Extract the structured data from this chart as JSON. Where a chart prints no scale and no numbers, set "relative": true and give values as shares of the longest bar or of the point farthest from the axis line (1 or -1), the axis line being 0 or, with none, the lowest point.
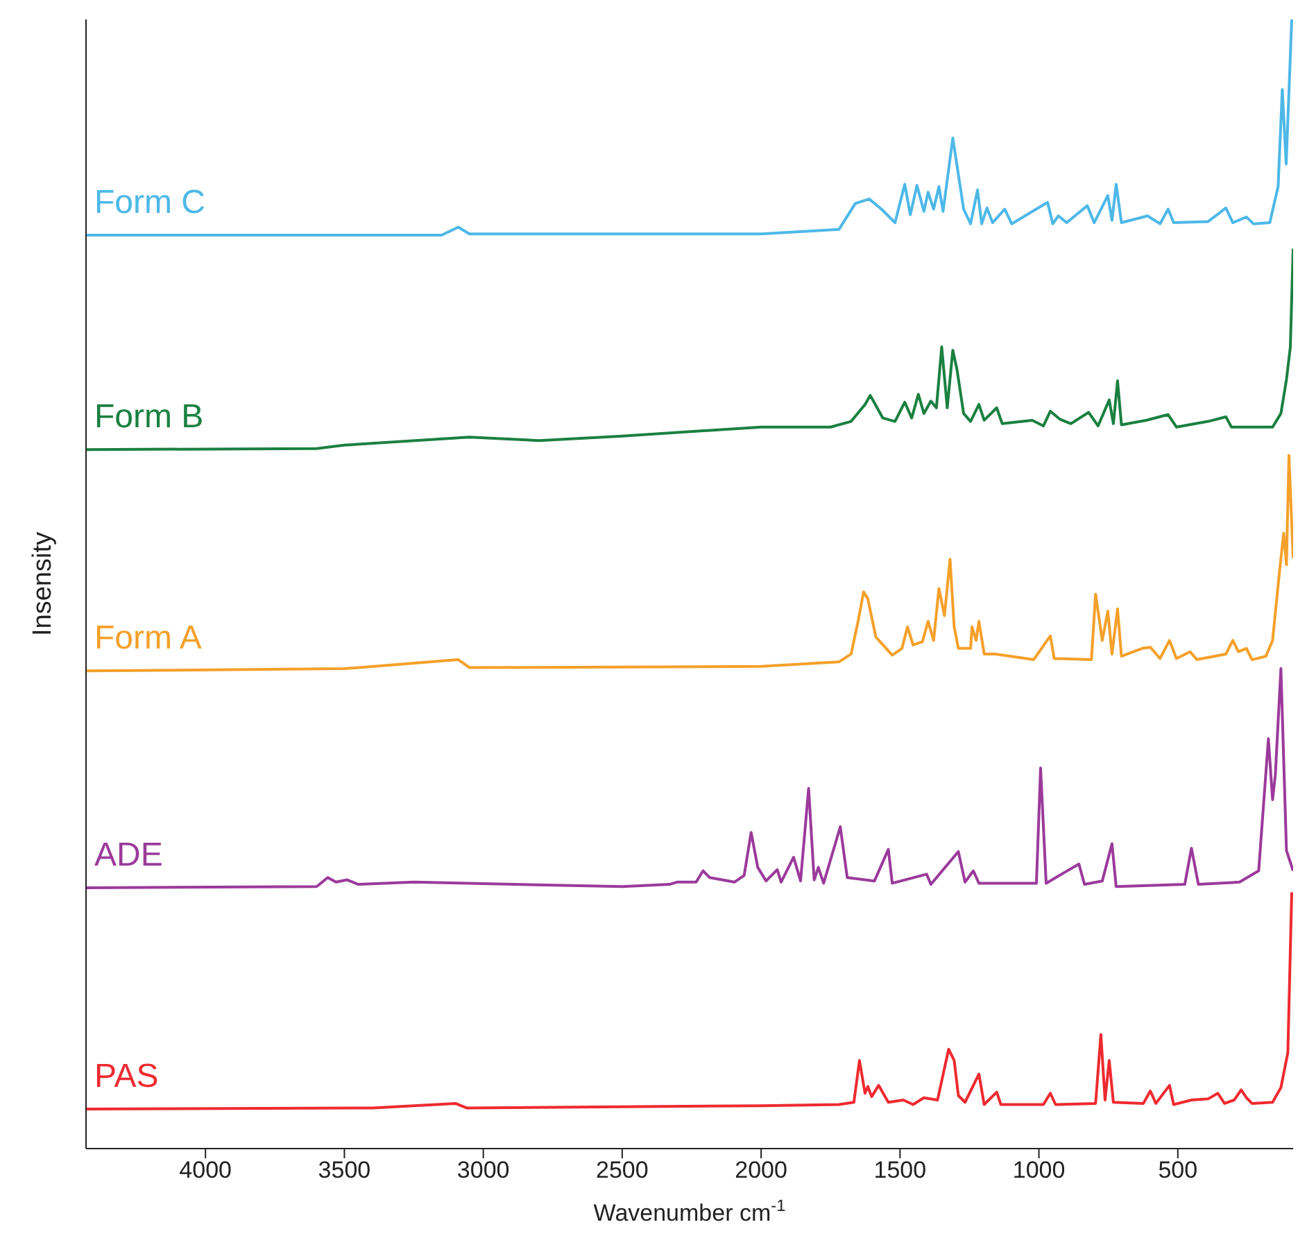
{
  "chart_data": {
    "type": "line",
    "relative": true,
    "xlabel": "Wavenumber cm$^{-1}$",
    "ylabel": "Insensity",
    "xlim": [
      4430,
      85
    ],
    "xticks": [
      4000,
      3500,
      3000,
      2500,
      2000,
      1500,
      1000,
      500
    ],
    "grid": false,
    "legend": false,
    "marker": "none",
    "line_style": "solid",
    "series": [
      {
        "name": "Form C",
        "color": "#4db8e8",
        "x": [
          4430,
          3500,
          3150,
          3090,
          3050,
          2000,
          1720,
          1661,
          1611,
          1567,
          1518,
          1483,
          1463,
          1439,
          1414,
          1399,
          1379,
          1360,
          1345,
          1310,
          1271,
          1246,
          1221,
          1206,
          1187,
          1167,
          1123,
          1098,
          969,
          950,
          930,
          900,
          826,
          801,
          752,
          737,
          722,
          703,
          609,
          564,
          535,
          515,
          391,
          327,
          302,
          253,
          228,
          169,
          139,
          124,
          110,
          90
        ],
        "values": [
          0.809,
          0.809,
          0.809,
          0.816,
          0.81,
          0.81,
          0.814,
          0.837,
          0.841,
          0.832,
          0.82,
          0.854,
          0.827,
          0.853,
          0.83,
          0.847,
          0.832,
          0.852,
          0.83,
          0.895,
          0.832,
          0.819,
          0.849,
          0.819,
          0.833,
          0.82,
          0.832,
          0.819,
          0.838,
          0.819,
          0.826,
          0.82,
          0.835,
          0.82,
          0.844,
          0.822,
          0.854,
          0.82,
          0.826,
          0.819,
          0.832,
          0.82,
          0.821,
          0.833,
          0.82,
          0.825,
          0.819,
          0.82,
          0.852,
          0.938,
          0.872,
          1
        ]
      },
      {
        "name": "Form B",
        "color": "#1a8040",
        "x": [
          4430,
          3600,
          3500,
          3050,
          2800,
          2500,
          2000,
          1750,
          1676,
          1626,
          1607,
          1562,
          1518,
          1483,
          1458,
          1434,
          1414,
          1389,
          1369,
          1350,
          1330,
          1310,
          1295,
          1271,
          1246,
          1216,
          1197,
          1152,
          1132,
          1024,
          984,
          959,
          925,
          885,
          821,
          787,
          747,
          732,
          717,
          703,
          614,
          535,
          505,
          391,
          327,
          307,
          159,
          129,
          109,
          95,
          85
        ],
        "values": [
          0.619,
          0.62,
          0.623,
          0.63,
          0.627,
          0.631,
          0.639,
          0.639,
          0.644,
          0.659,
          0.667,
          0.647,
          0.644,
          0.661,
          0.647,
          0.668,
          0.651,
          0.662,
          0.656,
          0.71,
          0.656,
          0.707,
          0.69,
          0.651,
          0.644,
          0.659,
          0.645,
          0.656,
          0.642,
          0.645,
          0.64,
          0.653,
          0.646,
          0.642,
          0.652,
          0.64,
          0.663,
          0.642,
          0.68,
          0.641,
          0.645,
          0.65,
          0.639,
          0.644,
          0.648,
          0.639,
          0.639,
          0.651,
          0.681,
          0.71,
          0.797
        ]
      },
      {
        "name": "Form A",
        "color": "#f5a02a",
        "x": [
          4430,
          3500,
          3090,
          3050,
          2000,
          1720,
          1676,
          1651,
          1631,
          1616,
          1587,
          1528,
          1493,
          1473,
          1453,
          1419,
          1399,
          1379,
          1360,
          1340,
          1320,
          1305,
          1290,
          1246,
          1241,
          1226,
          1216,
          1197,
          1157,
          1019,
          959,
          945,
          811,
          796,
          772,
          752,
          737,
          717,
          703,
          628,
          599,
          564,
          530,
          505,
          456,
          431,
          327,
          302,
          282,
          253,
          233,
          183,
          159,
          134,
          119,
          109,
          100,
          85
        ],
        "values": [
          0.423,
          0.425,
          0.433,
          0.426,
          0.427,
          0.431,
          0.438,
          0.467,
          0.493,
          0.487,
          0.453,
          0.437,
          0.443,
          0.462,
          0.446,
          0.449,
          0.467,
          0.45,
          0.496,
          0.472,
          0.522,
          0.462,
          0.443,
          0.443,
          0.462,
          0.45,
          0.467,
          0.438,
          0.438,
          0.433,
          0.454,
          0.434,
          0.433,
          0.491,
          0.45,
          0.476,
          0.438,
          0.478,
          0.436,
          0.443,
          0.444,
          0.434,
          0.45,
          0.434,
          0.44,
          0.433,
          0.438,
          0.45,
          0.44,
          0.443,
          0.433,
          0.436,
          0.45,
          0.511,
          0.545,
          0.517,
          0.614,
          0.523
        ]
      },
      {
        "name": "ADE",
        "color": "#9b3a9b",
        "x": [
          4430,
          3600,
          3560,
          3530,
          3490,
          3450,
          3250,
          2500,
          2330,
          2303,
          2234,
          2209,
          2185,
          2096,
          2061,
          2036,
          2012,
          1982,
          1942,
          1928,
          1883,
          1858,
          1829,
          1809,
          1794,
          1775,
          1715,
          1690,
          1592,
          1542,
          1528,
          1404,
          1389,
          1290,
          1266,
          1236,
          1216,
          1009,
          994,
          974,
          856,
          836,
          772,
          737,
          722,
          475,
          451,
          426,
          278,
          209,
          174,
          159,
          149,
          129,
          109,
          85
        ],
        "values": [
          0.231,
          0.232,
          0.24,
          0.236,
          0.238,
          0.234,
          0.236,
          0.232,
          0.234,
          0.236,
          0.236,
          0.246,
          0.24,
          0.236,
          0.242,
          0.28,
          0.249,
          0.237,
          0.247,
          0.236,
          0.258,
          0.237,
          0.319,
          0.238,
          0.249,
          0.235,
          0.285,
          0.24,
          0.237,
          0.265,
          0.235,
          0.243,
          0.234,
          0.263,
          0.236,
          0.246,
          0.235,
          0.235,
          0.337,
          0.235,
          0.252,
          0.234,
          0.237,
          0.27,
          0.232,
          0.234,
          0.266,
          0.234,
          0.236,
          0.246,
          0.363,
          0.309,
          0.331,
          0.425,
          0.264,
          0.246
        ]
      },
      {
        "name": "PAS",
        "color": "#ee2a30",
        "x": [
          4430,
          3400,
          3100,
          3060,
          2000,
          1720,
          1666,
          1646,
          1626,
          1616,
          1602,
          1577,
          1542,
          1488,
          1453,
          1414,
          1365,
          1325,
          1305,
          1290,
          1266,
          1216,
          1197,
          1152,
          1137,
          984,
          959,
          940,
          796,
          777,
          762,
          747,
          732,
          624,
          599,
          579,
          530,
          515,
          451,
          391,
          356,
          332,
          297,
          272,
          253,
          233,
          159,
          129,
          104,
          90
        ],
        "values": [
          0.035,
          0.036,
          0.04,
          0.036,
          0.038,
          0.039,
          0.041,
          0.078,
          0.049,
          0.055,
          0.046,
          0.056,
          0.041,
          0.043,
          0.039,
          0.045,
          0.043,
          0.088,
          0.078,
          0.047,
          0.041,
          0.066,
          0.039,
          0.05,
          0.039,
          0.039,
          0.049,
          0.039,
          0.04,
          0.101,
          0.043,
          0.078,
          0.041,
          0.04,
          0.051,
          0.04,
          0.056,
          0.039,
          0.043,
          0.044,
          0.049,
          0.04,
          0.043,
          0.052,
          0.045,
          0.04,
          0.041,
          0.054,
          0.085,
          0.227
        ]
      }
    ]
  }
}
